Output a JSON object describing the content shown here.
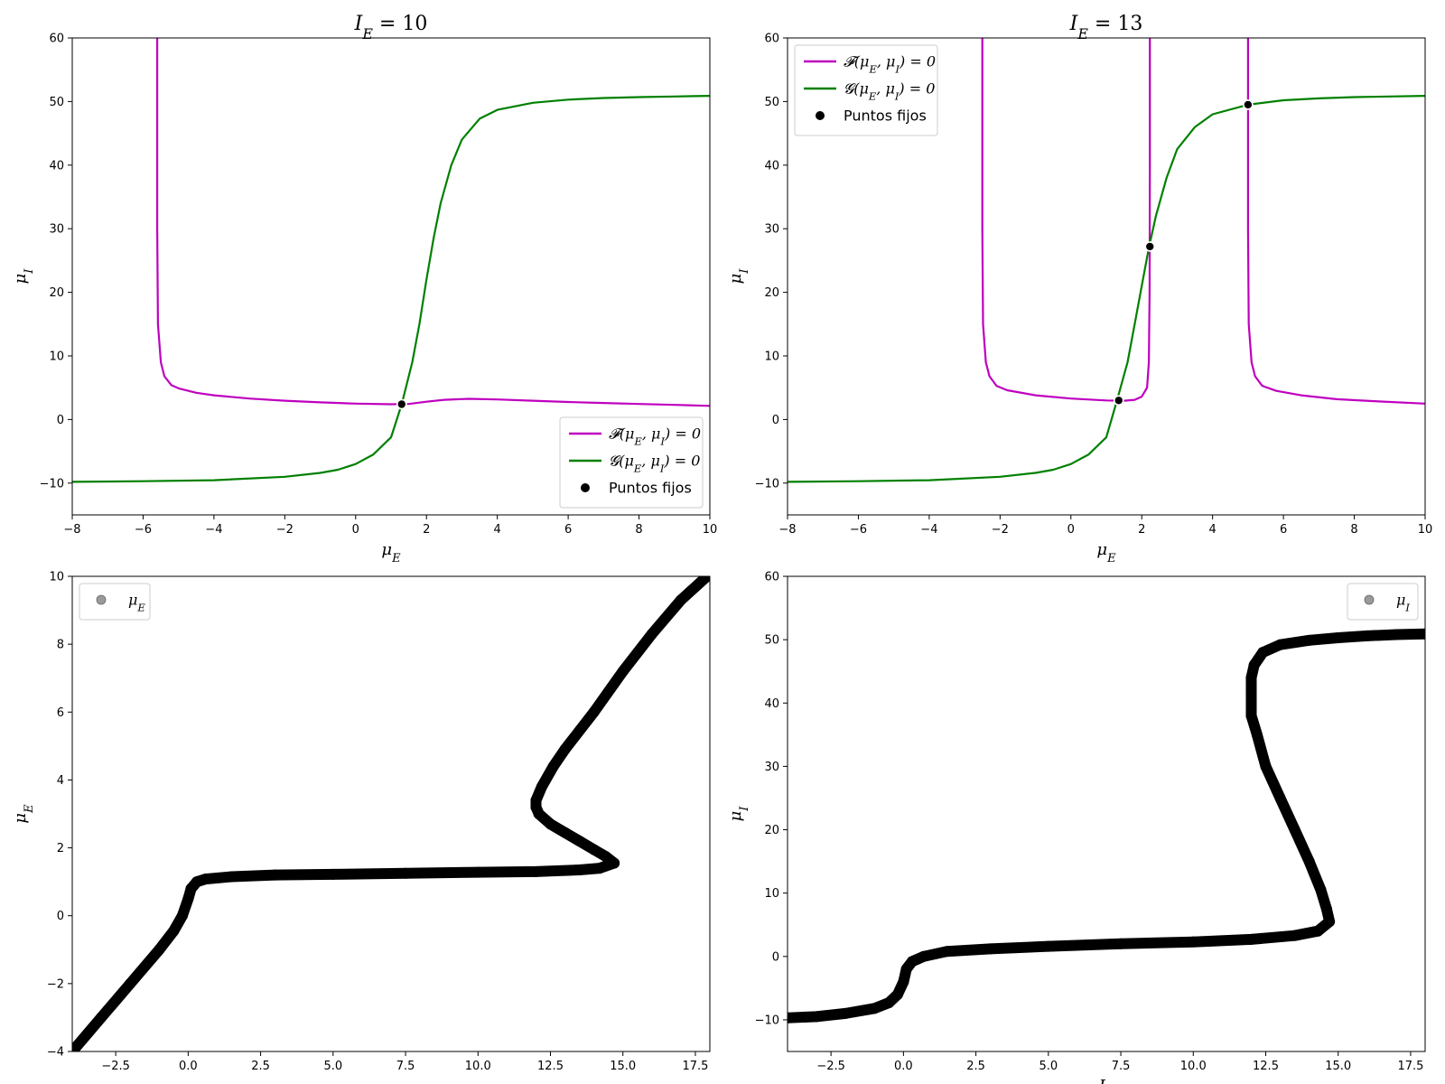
{
  "chart_data": [
    {
      "type": "line",
      "title": "I_E = 10",
      "xlabel": "μ_E",
      "ylabel": "μ_I",
      "xlim": [
        -8,
        10
      ],
      "ylim": [
        -15,
        60
      ],
      "xticks": [
        "−8",
        "−6",
        "−4",
        "−2",
        "0",
        "2",
        "4",
        "6",
        "8",
        "10"
      ],
      "yticks": [
        "−10",
        "0",
        "10",
        "20",
        "30",
        "40",
        "50",
        "60"
      ],
      "legend_position": "lower-right",
      "series": [
        {
          "name": "𝓕(μ_E, μ_I) = 0",
          "color": "#bf00bf",
          "segments": [
            [
              [
                -5.6,
                60
              ],
              [
                -5.6,
                30
              ],
              [
                -5.58,
                15
              ],
              [
                -5.5,
                9
              ],
              [
                -5.4,
                6.8
              ],
              [
                -5.2,
                5.4
              ],
              [
                -5.0,
                4.9
              ],
              [
                -4.5,
                4.2
              ],
              [
                -4.0,
                3.8
              ],
              [
                -3.0,
                3.3
              ],
              [
                -2.0,
                2.95
              ],
              [
                -1.0,
                2.7
              ],
              [
                0.0,
                2.5
              ],
              [
                1.0,
                2.4
              ],
              [
                1.5,
                2.45
              ],
              [
                2.0,
                2.8
              ],
              [
                2.5,
                3.1
              ],
              [
                3.2,
                3.25
              ],
              [
                4.0,
                3.15
              ],
              [
                5.0,
                2.95
              ],
              [
                6.0,
                2.75
              ],
              [
                7.0,
                2.6
              ],
              [
                8.0,
                2.45
              ],
              [
                9.0,
                2.3
              ],
              [
                10.0,
                2.15
              ]
            ]
          ]
        },
        {
          "name": "𝓖(μ_E, μ_I) = 0",
          "color": "#008000",
          "segments": [
            [
              [
                -8,
                -9.8
              ],
              [
                -6,
                -9.7
              ],
              [
                -4,
                -9.55
              ],
              [
                -2,
                -9.0
              ],
              [
                -1,
                -8.4
              ],
              [
                -0.5,
                -7.9
              ],
              [
                0,
                -7.0
              ],
              [
                0.5,
                -5.5
              ],
              [
                1.0,
                -2.8
              ],
              [
                1.3,
                2.4
              ],
              [
                1.6,
                9.0
              ],
              [
                1.8,
                15.0
              ],
              [
                2.0,
                22.0
              ],
              [
                2.2,
                28.5
              ],
              [
                2.4,
                34.0
              ],
              [
                2.7,
                40.0
              ],
              [
                3.0,
                44.0
              ],
              [
                3.5,
                47.3
              ],
              [
                4.0,
                48.7
              ],
              [
                5.0,
                49.8
              ],
              [
                6.0,
                50.3
              ],
              [
                7.0,
                50.55
              ],
              [
                8.0,
                50.7
              ],
              [
                9.0,
                50.8
              ],
              [
                10.0,
                50.9
              ]
            ]
          ]
        }
      ],
      "fixed_points_label": "Puntos fijos",
      "fixed_points": [
        [
          1.3,
          2.4
        ]
      ]
    },
    {
      "type": "line",
      "title": "I_E = 13",
      "xlabel": "μ_E",
      "ylabel": "μ_I",
      "xlim": [
        -8,
        10
      ],
      "ylim": [
        -15,
        60
      ],
      "xticks": [
        "−8",
        "−6",
        "−4",
        "−2",
        "0",
        "2",
        "4",
        "6",
        "8",
        "10"
      ],
      "yticks": [
        "−10",
        "0",
        "10",
        "20",
        "30",
        "40",
        "50",
        "60"
      ],
      "legend_position": "upper-left",
      "series": [
        {
          "name": "𝓕(μ_E, μ_I) = 0",
          "color": "#bf00bf",
          "segments": [
            [
              [
                -2.5,
                60
              ],
              [
                -2.5,
                30
              ],
              [
                -2.48,
                15
              ],
              [
                -2.4,
                9
              ],
              [
                -2.3,
                6.8
              ],
              [
                -2.1,
                5.3
              ],
              [
                -1.8,
                4.6
              ],
              [
                -1.0,
                3.8
              ],
              [
                0.0,
                3.3
              ],
              [
                1.0,
                3.0
              ],
              [
                1.5,
                2.95
              ],
              [
                1.8,
                3.1
              ],
              [
                2.0,
                3.6
              ],
              [
                2.15,
                5.0
              ],
              [
                2.2,
                9.0
              ],
              [
                2.22,
                20.0
              ],
              [
                2.23,
                40.0
              ],
              [
                2.23,
                60.0
              ]
            ],
            [
              [
                5.0,
                60
              ],
              [
                5.0,
                30
              ],
              [
                5.02,
                15
              ],
              [
                5.1,
                9
              ],
              [
                5.2,
                6.8
              ],
              [
                5.4,
                5.3
              ],
              [
                5.8,
                4.5
              ],
              [
                6.5,
                3.8
              ],
              [
                7.5,
                3.2
              ],
              [
                8.5,
                2.9
              ],
              [
                10.0,
                2.5
              ]
            ]
          ]
        },
        {
          "name": "𝓖(μ_E, μ_I) = 0",
          "color": "#008000",
          "segments": [
            [
              [
                -8,
                -9.8
              ],
              [
                -6,
                -9.7
              ],
              [
                -4,
                -9.55
              ],
              [
                -2,
                -9.0
              ],
              [
                -1,
                -8.4
              ],
              [
                -0.5,
                -7.9
              ],
              [
                0,
                -7.0
              ],
              [
                0.5,
                -5.5
              ],
              [
                1.0,
                -2.8
              ],
              [
                1.3,
                3.0
              ],
              [
                1.6,
                9.0
              ],
              [
                1.8,
                15.0
              ],
              [
                2.0,
                21.0
              ],
              [
                2.2,
                27.0
              ],
              [
                2.4,
                32.0
              ],
              [
                2.7,
                38.0
              ],
              [
                3.0,
                42.5
              ],
              [
                3.5,
                46.0
              ],
              [
                4.0,
                48.0
              ],
              [
                5.0,
                49.5
              ],
              [
                6.0,
                50.2
              ],
              [
                7.0,
                50.5
              ],
              [
                8.0,
                50.7
              ],
              [
                9.0,
                50.8
              ],
              [
                10.0,
                50.9
              ]
            ]
          ]
        }
      ],
      "fixed_points_label": "Puntos fijos",
      "fixed_points": [
        [
          1.35,
          3.0
        ],
        [
          2.23,
          27.2
        ],
        [
          5.0,
          49.5
        ]
      ]
    },
    {
      "type": "scatter",
      "title": "",
      "xlabel": "",
      "ylabel": "μ_E",
      "xlim": [
        -4,
        18
      ],
      "ylim": [
        -4,
        10
      ],
      "xticks": [
        "−2.5",
        "0.0",
        "2.5",
        "5.0",
        "7.5",
        "10.0",
        "12.5",
        "15.0",
        "17.5"
      ],
      "yticks": [
        "−4",
        "−2",
        "0",
        "2",
        "4",
        "6",
        "8",
        "10"
      ],
      "legend_position": "upper-left",
      "series": [
        {
          "name": "μ_E",
          "color": "#000000",
          "points": [
            [
              -4.0,
              -4.0
            ],
            [
              -3.0,
              -3.0
            ],
            [
              -2.0,
              -2.0
            ],
            [
              -1.0,
              -1.0
            ],
            [
              -0.5,
              -0.45
            ],
            [
              -0.2,
              0.0
            ],
            [
              0.0,
              0.5
            ],
            [
              0.1,
              0.8
            ],
            [
              0.3,
              1.0
            ],
            [
              0.6,
              1.08
            ],
            [
              1.5,
              1.15
            ],
            [
              3.0,
              1.2
            ],
            [
              5.0,
              1.22
            ],
            [
              7.5,
              1.25
            ],
            [
              10.0,
              1.28
            ],
            [
              12.0,
              1.3
            ],
            [
              13.5,
              1.35
            ],
            [
              14.2,
              1.4
            ],
            [
              14.7,
              1.55
            ],
            [
              14.4,
              1.75
            ],
            [
              14.0,
              1.95
            ],
            [
              13.5,
              2.2
            ],
            [
              13.0,
              2.45
            ],
            [
              12.5,
              2.7
            ],
            [
              12.1,
              3.0
            ],
            [
              12.0,
              3.2
            ],
            [
              12.0,
              3.4
            ],
            [
              12.2,
              3.8
            ],
            [
              12.6,
              4.4
            ],
            [
              13.0,
              4.9
            ],
            [
              14.0,
              6.0
            ],
            [
              15.0,
              7.2
            ],
            [
              16.0,
              8.3
            ],
            [
              17.0,
              9.3
            ],
            [
              17.9,
              10.0
            ]
          ]
        }
      ]
    },
    {
      "type": "scatter",
      "title": "",
      "xlabel": "I_E",
      "ylabel": "μ_I",
      "xlim": [
        -4,
        18
      ],
      "ylim": [
        -15,
        60
      ],
      "xticks": [
        "−2.5",
        "0.0",
        "2.5",
        "5.0",
        "7.5",
        "10.0",
        "12.5",
        "15.0",
        "17.5"
      ],
      "yticks": [
        "−10",
        "0",
        "10",
        "20",
        "30",
        "40",
        "50",
        "60"
      ],
      "legend_position": "upper-right",
      "series": [
        {
          "name": "μ_I",
          "color": "#000000",
          "points": [
            [
              -4.0,
              -9.7
            ],
            [
              -3.0,
              -9.5
            ],
            [
              -2.0,
              -9.0
            ],
            [
              -1.0,
              -8.2
            ],
            [
              -0.5,
              -7.3
            ],
            [
              -0.2,
              -6.0
            ],
            [
              0.0,
              -4.0
            ],
            [
              0.1,
              -2.0
            ],
            [
              0.3,
              -0.8
            ],
            [
              0.7,
              0.0
            ],
            [
              1.5,
              0.8
            ],
            [
              3.0,
              1.2
            ],
            [
              5.0,
              1.6
            ],
            [
              7.5,
              2.0
            ],
            [
              10.0,
              2.3
            ],
            [
              12.0,
              2.7
            ],
            [
              13.5,
              3.3
            ],
            [
              14.3,
              4.0
            ],
            [
              14.7,
              5.5
            ],
            [
              14.6,
              7.5
            ],
            [
              14.4,
              10.5
            ],
            [
              14.0,
              15.0
            ],
            [
              13.5,
              20.0
            ],
            [
              13.0,
              25.0
            ],
            [
              12.5,
              30.0
            ],
            [
              12.2,
              35.0
            ],
            [
              12.0,
              38.0
            ],
            [
              12.0,
              42.0
            ],
            [
              12.0,
              44.0
            ],
            [
              12.1,
              46.0
            ],
            [
              12.4,
              48.0
            ],
            [
              13.0,
              49.2
            ],
            [
              14.0,
              49.9
            ],
            [
              15.0,
              50.3
            ],
            [
              16.0,
              50.6
            ],
            [
              17.0,
              50.8
            ],
            [
              18.0,
              50.9
            ]
          ]
        }
      ]
    }
  ]
}
